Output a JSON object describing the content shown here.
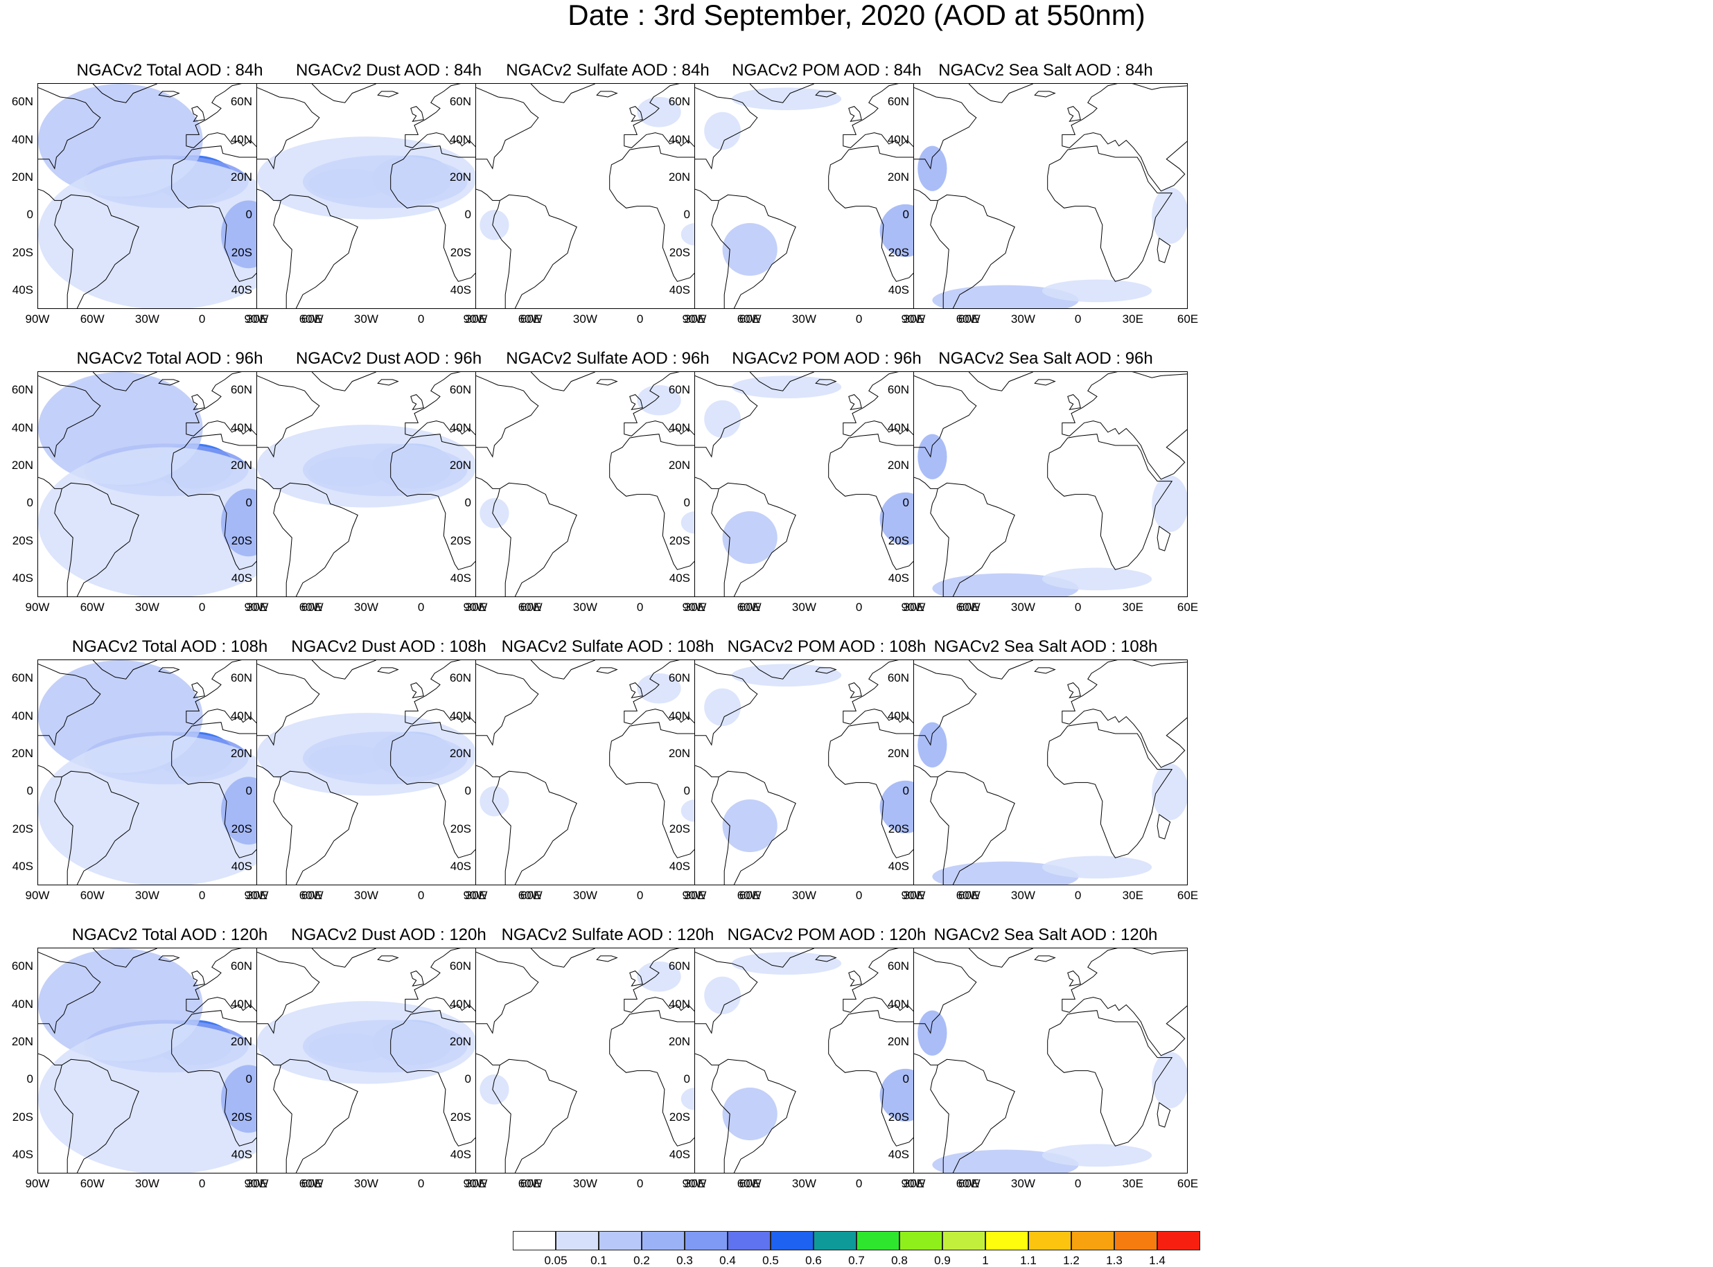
{
  "title": "Date : 3rd September, 2020 (AOD at 550nm)",
  "panels": [
    [
      "NGACv2 Total AOD : 84h",
      "NGACv2 Dust AOD : 84h",
      "NGACv2 Sulfate AOD : 84h",
      "NGACv2 POM AOD : 84h",
      "NGACv2 Sea Salt AOD : 84h"
    ],
    [
      "NGACv2 Total AOD : 96h",
      "NGACv2 Dust AOD : 96h",
      "NGACv2 Sulfate AOD : 96h",
      "NGACv2 POM AOD : 96h",
      "NGACv2 Sea Salt AOD : 96h"
    ],
    [
      "NGACv2 Total AOD : 108h",
      "NGACv2 Dust AOD : 108h",
      "NGACv2 Sulfate AOD : 108h",
      "NGACv2 POM AOD : 108h",
      "NGACv2 Sea Salt AOD : 108h"
    ],
    [
      "NGACv2 Total AOD : 120h",
      "NGACv2 Dust AOD : 120h",
      "NGACv2 Sulfate AOD : 120h",
      "NGACv2 POM AOD : 120h",
      "NGACv2 Sea Salt  AOD : 120h"
    ]
  ],
  "map": {
    "lon_range": [
      -90,
      60
    ],
    "lat_range": [
      -50,
      70
    ],
    "lon_ticks": [
      "90W",
      "60W",
      "30W",
      "0",
      "30E",
      "60E"
    ],
    "lat_ticks": [
      "60N",
      "40N",
      "20N",
      "0",
      "20S",
      "40S"
    ]
  },
  "colorbar": {
    "colors": [
      "#ffffff",
      "#d6e0fb",
      "#b8c8f8",
      "#9bb2f6",
      "#7f9af4",
      "#5f72ef",
      "#1d62f0",
      "#0f9a9a",
      "#2ee62e",
      "#8fef1a",
      "#c2ef3c",
      "#fdfd0d",
      "#fcc40f",
      "#f9a20f",
      "#f77c10",
      "#f72010"
    ],
    "labels": [
      "0.05",
      "0.1",
      "0.2",
      "0.3",
      "0.4",
      "0.5",
      "0.6",
      "0.7",
      "0.8",
      "0.9",
      "1",
      "1.1",
      "1.2",
      "1.3",
      "1.4"
    ]
  }
}
